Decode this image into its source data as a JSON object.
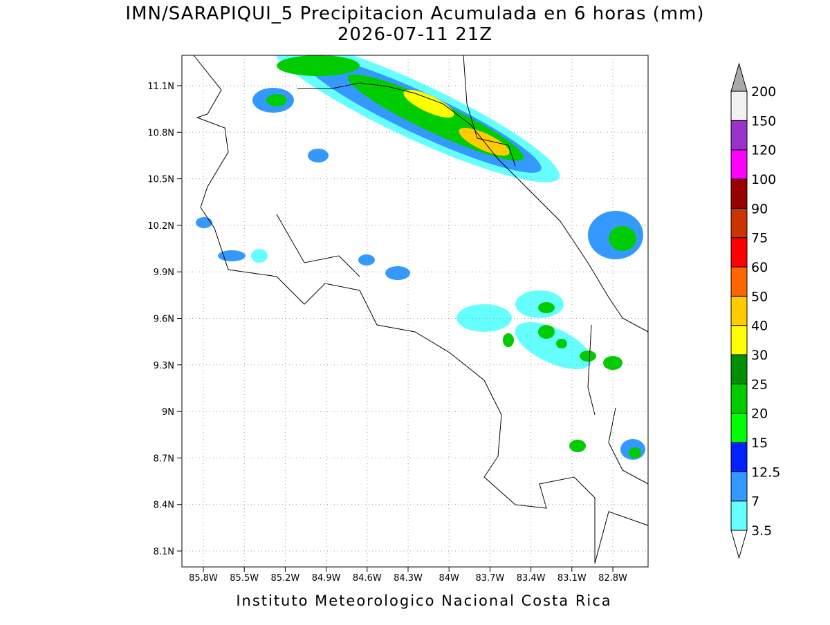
{
  "header": {
    "title": "IMN/SARAPIQUI_5 Precipitacion Acumulada en 6 horas (mm)",
    "subtitle": "2026-07-11 21Z"
  },
  "map": {
    "lat_labels": [
      "11.1N",
      "10.8N",
      "10.5N",
      "10.2N",
      "9.9N",
      "9.6N",
      "9.3N",
      "9N",
      "8.7N",
      "8.4N",
      "8.1N"
    ],
    "lon_labels": [
      "85.8W",
      "85.5W",
      "85.2W",
      "84.9W",
      "84.6W",
      "84.3W",
      "84W",
      "83.7W",
      "83.4W",
      "83.1W",
      "82.8W"
    ]
  },
  "legend": {
    "below_color": "#ffffff",
    "above_color": "#a9a9a9",
    "levels": [
      "3.5",
      "7",
      "12.5",
      "15",
      "20",
      "25",
      "30",
      "40",
      "50",
      "60",
      "75",
      "90",
      "100",
      "120",
      "150",
      "200"
    ],
    "colors": [
      "#66ffff",
      "#3399ff",
      "#0022ff",
      "#00ff00",
      "#00cc00",
      "#008f00",
      "#ffff00",
      "#ffcc00",
      "#ff6600",
      "#ff0000",
      "#cc3300",
      "#990000",
      "#ff00ff",
      "#9933cc",
      "#f2f2f2"
    ]
  },
  "footer": "Instituto Meteorologico Nacional Costa Rica"
}
